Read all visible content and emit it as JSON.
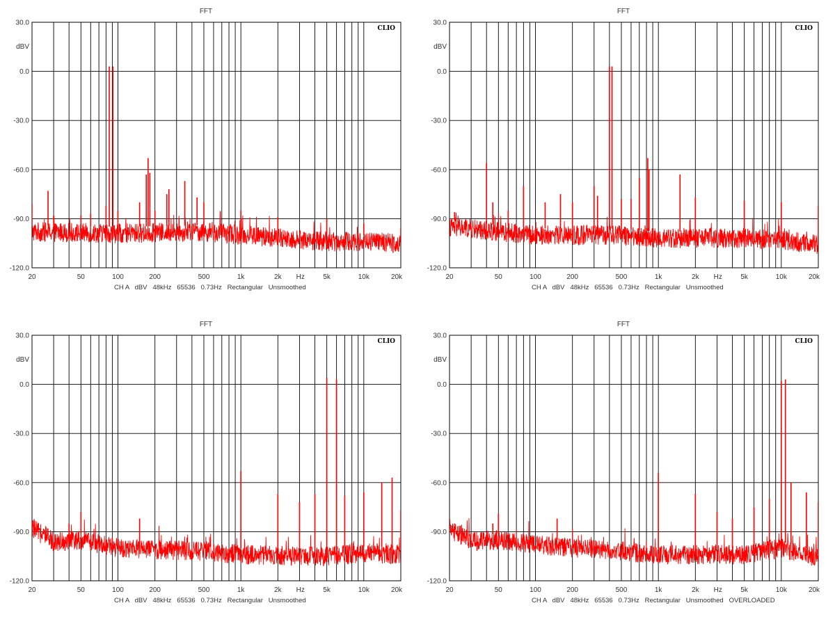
{
  "chart_data": [
    {
      "type": "line",
      "title": "FFT",
      "ylabel": "dBV",
      "xlabel": "Hz",
      "brand": "CLIO",
      "footer": "CH A   dBV   48kHz   65536   0.73Hz   Rectangular   Unsmoothed",
      "x_scale": "log",
      "xlim": [
        20,
        20000
      ],
      "ylim": [
        -120,
        30
      ],
      "y_ticks": [
        "30.0",
        "0.0",
        "-30.0",
        "-60.0",
        "-90.0",
        "-120.0"
      ],
      "x_ticks": [
        "20",
        "50",
        "100",
        "200",
        "500",
        "1k",
        "2k",
        "Hz",
        "5k",
        "10k",
        "20k"
      ],
      "grid": true,
      "series": [
        {
          "color": "#ff0000",
          "noise_floor": [
            [
              20,
              -98
            ],
            [
              100,
              -99
            ],
            [
              500,
              -98
            ],
            [
              1000,
              -100
            ],
            [
              5000,
              -104
            ],
            [
              10000,
              -104
            ],
            [
              20000,
              -105
            ]
          ],
          "peaks": [
            [
              20,
              -81
            ],
            [
              27,
              -73
            ],
            [
              30,
              -88
            ],
            [
              50,
              -88
            ],
            [
              60,
              -87
            ],
            [
              80,
              -82
            ],
            [
              85,
              3
            ],
            [
              91,
              3
            ],
            [
              100,
              -85
            ],
            [
              150,
              -80
            ],
            [
              170,
              -63
            ],
            [
              176,
              -53
            ],
            [
              182,
              -62
            ],
            [
              200,
              -85
            ],
            [
              250,
              -75
            ],
            [
              260,
              -72
            ],
            [
              350,
              -67
            ],
            [
              440,
              -77
            ],
            [
              500,
              -80
            ],
            [
              1000,
              -85
            ],
            [
              2000,
              -89
            ],
            [
              5000,
              -90
            ],
            [
              10000,
              -93
            ],
            [
              20000,
              -96
            ]
          ]
        }
      ]
    },
    {
      "type": "line",
      "title": "FFT",
      "ylabel": "dBV",
      "xlabel": "Hz",
      "brand": "CLIO",
      "footer": "CH A   dBV   48kHz   65536   0.73Hz   Rectangular   Unsmoothed",
      "x_scale": "log",
      "xlim": [
        20,
        20000
      ],
      "ylim": [
        -120,
        30
      ],
      "y_ticks": [
        "30.0",
        "0.0",
        "-30.0",
        "-60.0",
        "-90.0",
        "-120.0"
      ],
      "x_ticks": [
        "20",
        "50",
        "100",
        "200",
        "500",
        "1k",
        "2k",
        "Hz",
        "5k",
        "10k",
        "20k"
      ],
      "grid": true,
      "series": [
        {
          "color": "#ff0000",
          "noise_floor": [
            [
              20,
              -95
            ],
            [
              100,
              -100
            ],
            [
              500,
              -100
            ],
            [
              1000,
              -102
            ],
            [
              5000,
              -102
            ],
            [
              10000,
              -103
            ],
            [
              20000,
              -106
            ]
          ],
          "peaks": [
            [
              22,
              -86
            ],
            [
              40,
              -56
            ],
            [
              45,
              -80
            ],
            [
              60,
              -85
            ],
            [
              80,
              -70
            ],
            [
              120,
              -80
            ],
            [
              160,
              -75
            ],
            [
              200,
              -80
            ],
            [
              300,
              -70
            ],
            [
              320,
              -76
            ],
            [
              400,
              3
            ],
            [
              420,
              3
            ],
            [
              500,
              -78
            ],
            [
              600,
              -78
            ],
            [
              700,
              -65
            ],
            [
              820,
              -53
            ],
            [
              840,
              -60
            ],
            [
              1500,
              -63
            ],
            [
              2000,
              -77
            ],
            [
              5000,
              -79
            ],
            [
              10000,
              -80
            ],
            [
              20000,
              -82
            ]
          ]
        }
      ]
    },
    {
      "type": "line",
      "title": "FFT",
      "ylabel": "dBV",
      "xlabel": "Hz",
      "brand": "CLIO",
      "footer": "CH A   dBV   48kHz   65536   0.73Hz   Rectangular   Unsmoothed",
      "x_scale": "log",
      "xlim": [
        20,
        20000
      ],
      "ylim": [
        -120,
        30
      ],
      "y_ticks": [
        "30.0",
        "0.0",
        "-30.0",
        "-60.0",
        "-90.0",
        "-120.0"
      ],
      "x_ticks": [
        "20",
        "50",
        "100",
        "200",
        "500",
        "1k",
        "2k",
        "Hz",
        "5k",
        "10k",
        "20k"
      ],
      "grid": true,
      "series": [
        {
          "color": "#ff0000",
          "noise_floor": [
            [
              20,
              -88
            ],
            [
              30,
              -96
            ],
            [
              50,
              -95
            ],
            [
              100,
              -100
            ],
            [
              500,
              -102
            ],
            [
              1000,
              -104
            ],
            [
              5000,
              -105
            ],
            [
              10000,
              -103
            ],
            [
              20000,
              -104
            ]
          ],
          "peaks": [
            [
              40,
              -85
            ],
            [
              50,
              -78
            ],
            [
              150,
              -82
            ],
            [
              1000,
              -53
            ],
            [
              2000,
              -67
            ],
            [
              3000,
              -72
            ],
            [
              4000,
              -67
            ],
            [
              5000,
              4
            ],
            [
              6000,
              3
            ],
            [
              7000,
              -68
            ],
            [
              10000,
              -66
            ],
            [
              14000,
              -60
            ],
            [
              17000,
              -57
            ],
            [
              20000,
              -77
            ]
          ]
        }
      ]
    },
    {
      "type": "line",
      "title": "FFT",
      "ylabel": "dBV",
      "xlabel": "Hz",
      "brand": "CLIO",
      "footer": "CH A   dBV   48kHz   65536   0.73Hz   Rectangular   Unsmoothed   OVERLOADED",
      "x_scale": "log",
      "xlim": [
        20,
        20000
      ],
      "ylim": [
        -120,
        30
      ],
      "y_ticks": [
        "30.0",
        "0.0",
        "-30.0",
        "-60.0",
        "-90.0",
        "-120.0"
      ],
      "x_ticks": [
        "20",
        "50",
        "100",
        "200",
        "500",
        "1k",
        "2k",
        "Hz",
        "5k",
        "10k",
        "20k"
      ],
      "grid": true,
      "series": [
        {
          "color": "#ff0000",
          "noise_floor": [
            [
              20,
              -88
            ],
            [
              30,
              -96
            ],
            [
              50,
              -95
            ],
            [
              100,
              -98
            ],
            [
              500,
              -102
            ],
            [
              1000,
              -104
            ],
            [
              5000,
              -104
            ],
            [
              10000,
              -100
            ],
            [
              20000,
              -106
            ]
          ],
          "peaks": [
            [
              22,
              -85
            ],
            [
              45,
              -85
            ],
            [
              50,
              -79
            ],
            [
              150,
              -82
            ],
            [
              1000,
              -54
            ],
            [
              2000,
              -67
            ],
            [
              3000,
              -78
            ],
            [
              4000,
              -82
            ],
            [
              6000,
              -75
            ],
            [
              8000,
              -70
            ],
            [
              10000,
              2
            ],
            [
              10800,
              3
            ],
            [
              12000,
              -60
            ],
            [
              16000,
              -66
            ],
            [
              20000,
              -72
            ]
          ]
        }
      ]
    }
  ]
}
